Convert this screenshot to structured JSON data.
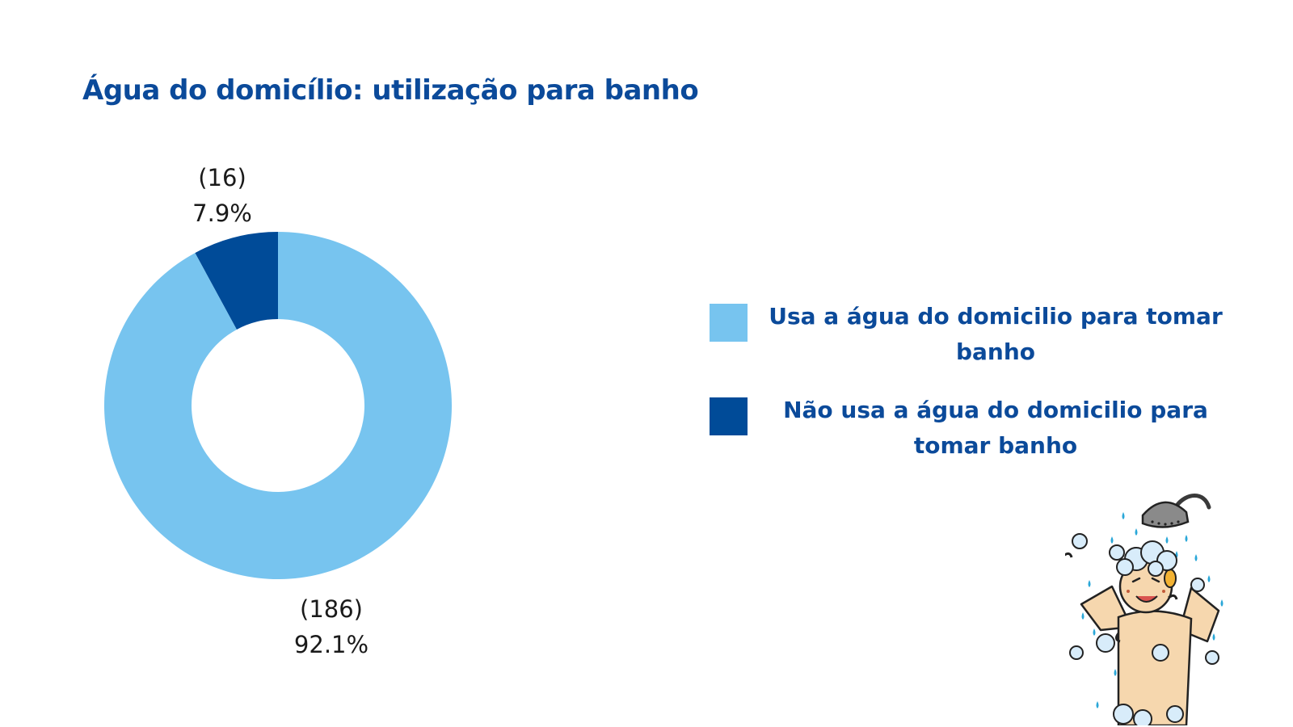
{
  "colors": {
    "title": "#0b4a9a",
    "legend_text": "#0b4a9a",
    "series_light": "#77c4ef",
    "series_dark": "#004b98",
    "label_text": "#1a1a1a"
  },
  "chart_data": {
    "type": "pie",
    "variant": "donut",
    "title": "Água do domicílio: utilização para banho",
    "slices": [
      {
        "name": "Não usa a água do domicilio para tomar banho",
        "count": 16,
        "count_label": "(16)",
        "percent": 7.9,
        "percent_label": "7.9%",
        "color": "#004b98"
      },
      {
        "name": "Usa a água do domicilio para tomar banho",
        "count": 186,
        "count_label": "(186)",
        "percent": 92.1,
        "percent_label": "92.1%",
        "color": "#77c4ef"
      }
    ],
    "legend": {
      "position": "right",
      "entries": [
        {
          "label": "Usa a água do domicilio para tomar banho",
          "color": "#77c4ef"
        },
        {
          "label": "Não usa a água do domicilio para tomar banho",
          "color": "#004b98"
        }
      ]
    }
  },
  "illustration": {
    "icon": "person-showering-icon"
  }
}
